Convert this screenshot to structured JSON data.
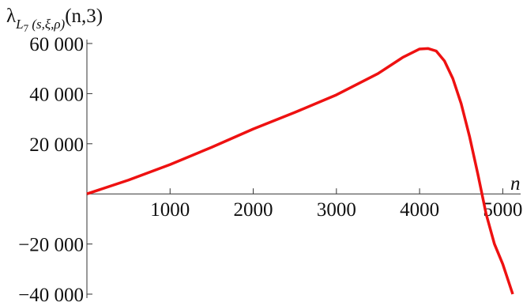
{
  "chart_data": {
    "type": "line",
    "y_label": [
      "λ",
      "L",
      "7",
      " (s,ξ,ρ)",
      "(n,3)"
    ],
    "x_label": "n",
    "x": [
      0,
      500,
      1000,
      1500,
      2000,
      2500,
      3000,
      3500,
      3800,
      4000,
      4100,
      4200,
      4300,
      4400,
      4500,
      4600,
      4700,
      4800,
      4900,
      5000,
      5120
    ],
    "series": [
      {
        "color": "#ee1111",
        "values": [
          0,
          5500,
          11700,
          18600,
          25900,
          32500,
          39500,
          48000,
          54500,
          57800,
          58000,
          57000,
          53000,
          46000,
          36000,
          23000,
          8000,
          -8000,
          -20000,
          -28000,
          -40000
        ]
      }
    ],
    "xlim": [
      0,
      5120
    ],
    "ylim": [
      -40000,
      60000
    ],
    "xticks": [
      1000,
      2000,
      3000,
      4000,
      5000
    ],
    "yticks": [
      {
        "value": -40000,
        "label": "−40 000"
      },
      {
        "value": -20000,
        "label": "−20 000"
      },
      {
        "value": 20000,
        "label": "20 000"
      },
      {
        "value": 40000,
        "label": "40 000"
      },
      {
        "value": 60000,
        "label": "60 000"
      }
    ]
  }
}
